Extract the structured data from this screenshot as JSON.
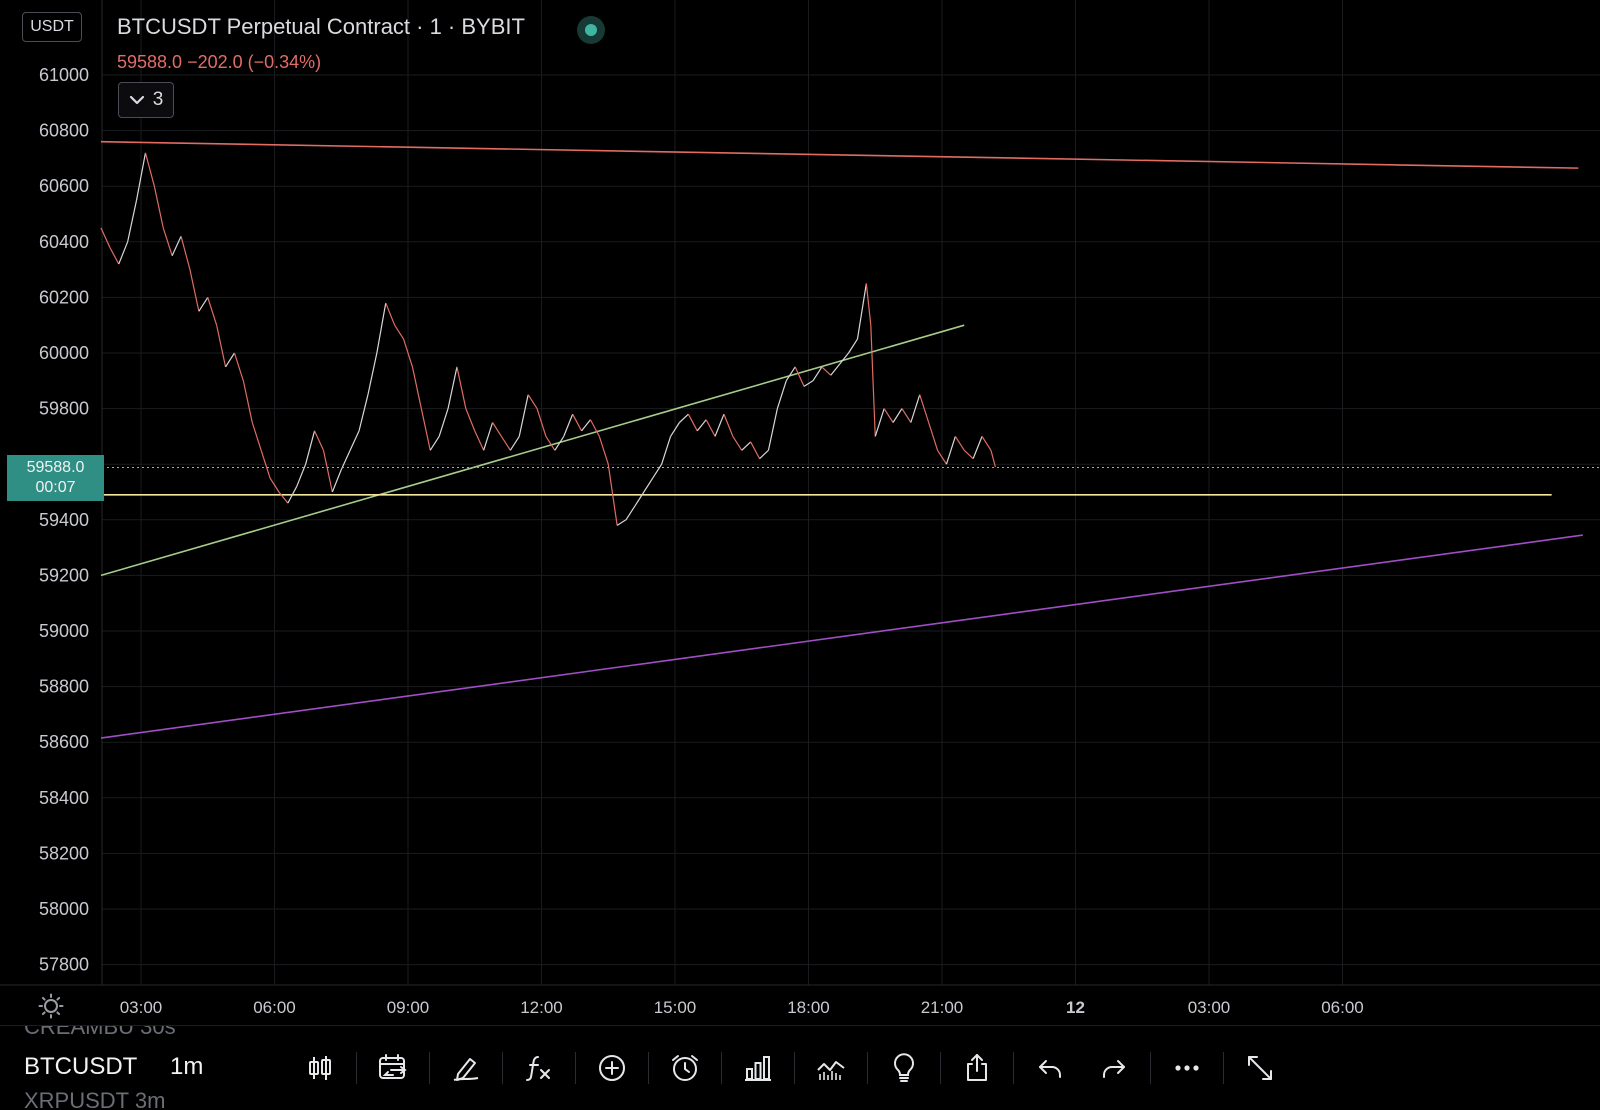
{
  "header": {
    "currency": "USDT",
    "symbol_title": "BTCUSDT Perpetual Contract · 1 · BYBIT",
    "quote": "59588.0  −202.0 (−0.34%)",
    "indicator_count": "3"
  },
  "last_price": {
    "price": "59588.0",
    "countdown": "00:07"
  },
  "chart_data": {
    "type": "line",
    "price_ticks": [
      61000,
      60800,
      60600,
      60400,
      60200,
      60000,
      59800,
      59600,
      59400,
      59200,
      59000,
      58800,
      58600,
      58400,
      58200,
      58000,
      57800
    ],
    "price_tick_labels": [
      "61000",
      "60800",
      "60600",
      "60400",
      "60200",
      "60000",
      "59800",
      "59400",
      "59200",
      "59000",
      "58800",
      "58600",
      "58400",
      "58200",
      "58000",
      "57800"
    ],
    "time_labels": [
      {
        "label": "03:00",
        "hour": 3,
        "bold": false
      },
      {
        "label": "06:00",
        "hour": 6,
        "bold": false
      },
      {
        "label": "09:00",
        "hour": 9,
        "bold": false
      },
      {
        "label": "12:00",
        "hour": 12,
        "bold": false
      },
      {
        "label": "15:00",
        "hour": 15,
        "bold": false
      },
      {
        "label": "18:00",
        "hour": 18,
        "bold": false
      },
      {
        "label": "21:00",
        "hour": 21,
        "bold": false
      },
      {
        "label": "12",
        "hour": 24,
        "bold": true
      },
      {
        "label": "03:00",
        "hour": 27,
        "bold": false
      },
      {
        "label": "06:00",
        "hour": 30,
        "bold": false
      }
    ],
    "x_range_hours": [
      2.1,
      35.4
    ],
    "y_range": [
      57700,
      61200
    ],
    "last_price": 59588.0,
    "price_series": [
      [
        2.1,
        60450
      ],
      [
        2.3,
        60380
      ],
      [
        2.5,
        60320
      ],
      [
        2.7,
        60400
      ],
      [
        2.9,
        60550
      ],
      [
        3.1,
        60720
      ],
      [
        3.3,
        60600
      ],
      [
        3.5,
        60450
      ],
      [
        3.7,
        60350
      ],
      [
        3.9,
        60420
      ],
      [
        4.1,
        60300
      ],
      [
        4.3,
        60150
      ],
      [
        4.5,
        60200
      ],
      [
        4.7,
        60100
      ],
      [
        4.9,
        59950
      ],
      [
        5.1,
        60000
      ],
      [
        5.3,
        59900
      ],
      [
        5.5,
        59750
      ],
      [
        5.7,
        59650
      ],
      [
        5.9,
        59550
      ],
      [
        6.1,
        59500
      ],
      [
        6.3,
        59460
      ],
      [
        6.5,
        59520
      ],
      [
        6.7,
        59600
      ],
      [
        6.9,
        59720
      ],
      [
        7.1,
        59650
      ],
      [
        7.3,
        59500
      ],
      [
        7.5,
        59580
      ],
      [
        7.7,
        59650
      ],
      [
        7.9,
        59720
      ],
      [
        8.1,
        59850
      ],
      [
        8.3,
        60000
      ],
      [
        8.5,
        60180
      ],
      [
        8.7,
        60100
      ],
      [
        8.9,
        60050
      ],
      [
        9.1,
        59950
      ],
      [
        9.3,
        59800
      ],
      [
        9.5,
        59650
      ],
      [
        9.7,
        59700
      ],
      [
        9.9,
        59800
      ],
      [
        10.1,
        59950
      ],
      [
        10.3,
        59800
      ],
      [
        10.5,
        59720
      ],
      [
        10.7,
        59650
      ],
      [
        10.9,
        59750
      ],
      [
        11.1,
        59700
      ],
      [
        11.3,
        59650
      ],
      [
        11.5,
        59700
      ],
      [
        11.7,
        59850
      ],
      [
        11.9,
        59800
      ],
      [
        12.1,
        59700
      ],
      [
        12.3,
        59650
      ],
      [
        12.5,
        59700
      ],
      [
        12.7,
        59780
      ],
      [
        12.9,
        59720
      ],
      [
        13.1,
        59760
      ],
      [
        13.3,
        59700
      ],
      [
        13.5,
        59600
      ],
      [
        13.7,
        59380
      ],
      [
        13.9,
        59400
      ],
      [
        14.1,
        59450
      ],
      [
        14.3,
        59500
      ],
      [
        14.5,
        59550
      ],
      [
        14.7,
        59600
      ],
      [
        14.9,
        59700
      ],
      [
        15.1,
        59750
      ],
      [
        15.3,
        59780
      ],
      [
        15.5,
        59720
      ],
      [
        15.7,
        59760
      ],
      [
        15.9,
        59700
      ],
      [
        16.1,
        59780
      ],
      [
        16.3,
        59700
      ],
      [
        16.5,
        59650
      ],
      [
        16.7,
        59680
      ],
      [
        16.9,
        59620
      ],
      [
        17.1,
        59650
      ],
      [
        17.3,
        59800
      ],
      [
        17.5,
        59900
      ],
      [
        17.7,
        59950
      ],
      [
        17.9,
        59880
      ],
      [
        18.1,
        59900
      ],
      [
        18.3,
        59950
      ],
      [
        18.5,
        59920
      ],
      [
        18.7,
        59960
      ],
      [
        18.9,
        60000
      ],
      [
        19.1,
        60050
      ],
      [
        19.3,
        60250
      ],
      [
        19.4,
        60100
      ],
      [
        19.5,
        59700
      ],
      [
        19.7,
        59800
      ],
      [
        19.9,
        59750
      ],
      [
        20.1,
        59800
      ],
      [
        20.3,
        59750
      ],
      [
        20.5,
        59850
      ],
      [
        20.7,
        59750
      ],
      [
        20.9,
        59650
      ],
      [
        21.1,
        59600
      ],
      [
        21.3,
        59700
      ],
      [
        21.5,
        59650
      ],
      [
        21.7,
        59620
      ],
      [
        21.9,
        59700
      ],
      [
        22.1,
        59650
      ],
      [
        22.2,
        59590
      ]
    ],
    "trendlines": [
      {
        "color": "#e06c62",
        "from": [
          2.1,
          60760
        ],
        "to": [
          35.3,
          60665
        ]
      },
      {
        "color": "#a5cc8a",
        "from": [
          2.1,
          59200
        ],
        "to": [
          21.5,
          60100
        ]
      },
      {
        "color": "#f2e8a0",
        "from": [
          2.1,
          59490
        ],
        "to": [
          34.7,
          59490
        ]
      },
      {
        "color": "#a04ec7",
        "from": [
          2.1,
          58615
        ],
        "to": [
          35.4,
          59345
        ]
      }
    ],
    "colors": {
      "up": "#d8d8d8",
      "down": "#e06c62",
      "grid": "#1a1b1f"
    }
  },
  "bottom": {
    "ticker_prev": "CREAMBU  30s",
    "ticker": "BTCUSDT",
    "interval": "1m",
    "ticker_next": "XRPUSDT  3m",
    "tools": [
      "candle-style-icon",
      "date-range-icon",
      "draw-pen-icon",
      "indicators-fx-icon",
      "add-plus-icon",
      "alarm-clock-icon",
      "bar-chart-icon",
      "compare-chart-icon",
      "idea-bulb-icon",
      "share-icon",
      "undo-icon",
      "redo-icon",
      "more-icon",
      "fullscreen-icon"
    ]
  }
}
